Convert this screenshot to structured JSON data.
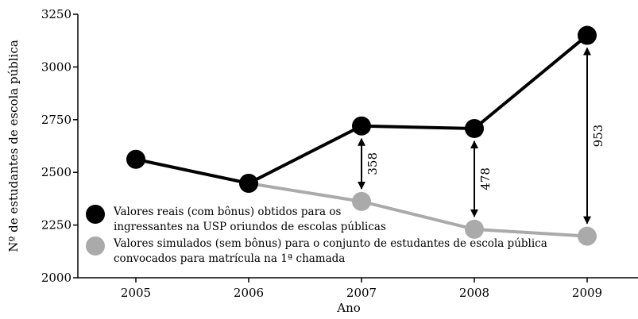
{
  "chart_data": {
    "type": "line",
    "x_label": "Ano",
    "y_label": "Nº de estudantes de escola pública",
    "categories": [
      "2005",
      "2006",
      "2007",
      "2008",
      "2009"
    ],
    "series": [
      {
        "name": "Valores reais (com bônus) obtidos para os\ningressantes na USP oriundos de escolas públicas",
        "color": "#000000",
        "values": [
          2562,
          2448,
          2720,
          2708,
          3150
        ]
      },
      {
        "name": "Valores simulados (sem bônus) para o conjunto de estudantes de escola pública\nconvocados para matrícula na 1ª chamada",
        "color": "#aaaaaa",
        "values": [
          null,
          2448,
          2362,
          2230,
          2197
        ]
      }
    ],
    "annotations": [
      {
        "text": "358",
        "category": "2007"
      },
      {
        "text": "478",
        "category": "2008"
      },
      {
        "text": "953",
        "category": "2009"
      }
    ],
    "ylim": [
      2000,
      3250
    ],
    "yticks": [
      2000,
      2250,
      2500,
      2750,
      3000,
      3250
    ],
    "legend": "lower left"
  }
}
